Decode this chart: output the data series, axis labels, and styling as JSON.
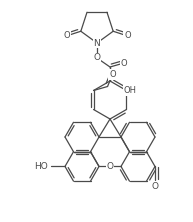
{
  "bg_color": "#ffffff",
  "line_color": "#4a4a4a",
  "line_width": 0.9,
  "fig_width": 1.93,
  "fig_height": 2.22,
  "dpi": 100,
  "xlim": [
    0,
    193
  ],
  "ylim": [
    0,
    222
  ]
}
